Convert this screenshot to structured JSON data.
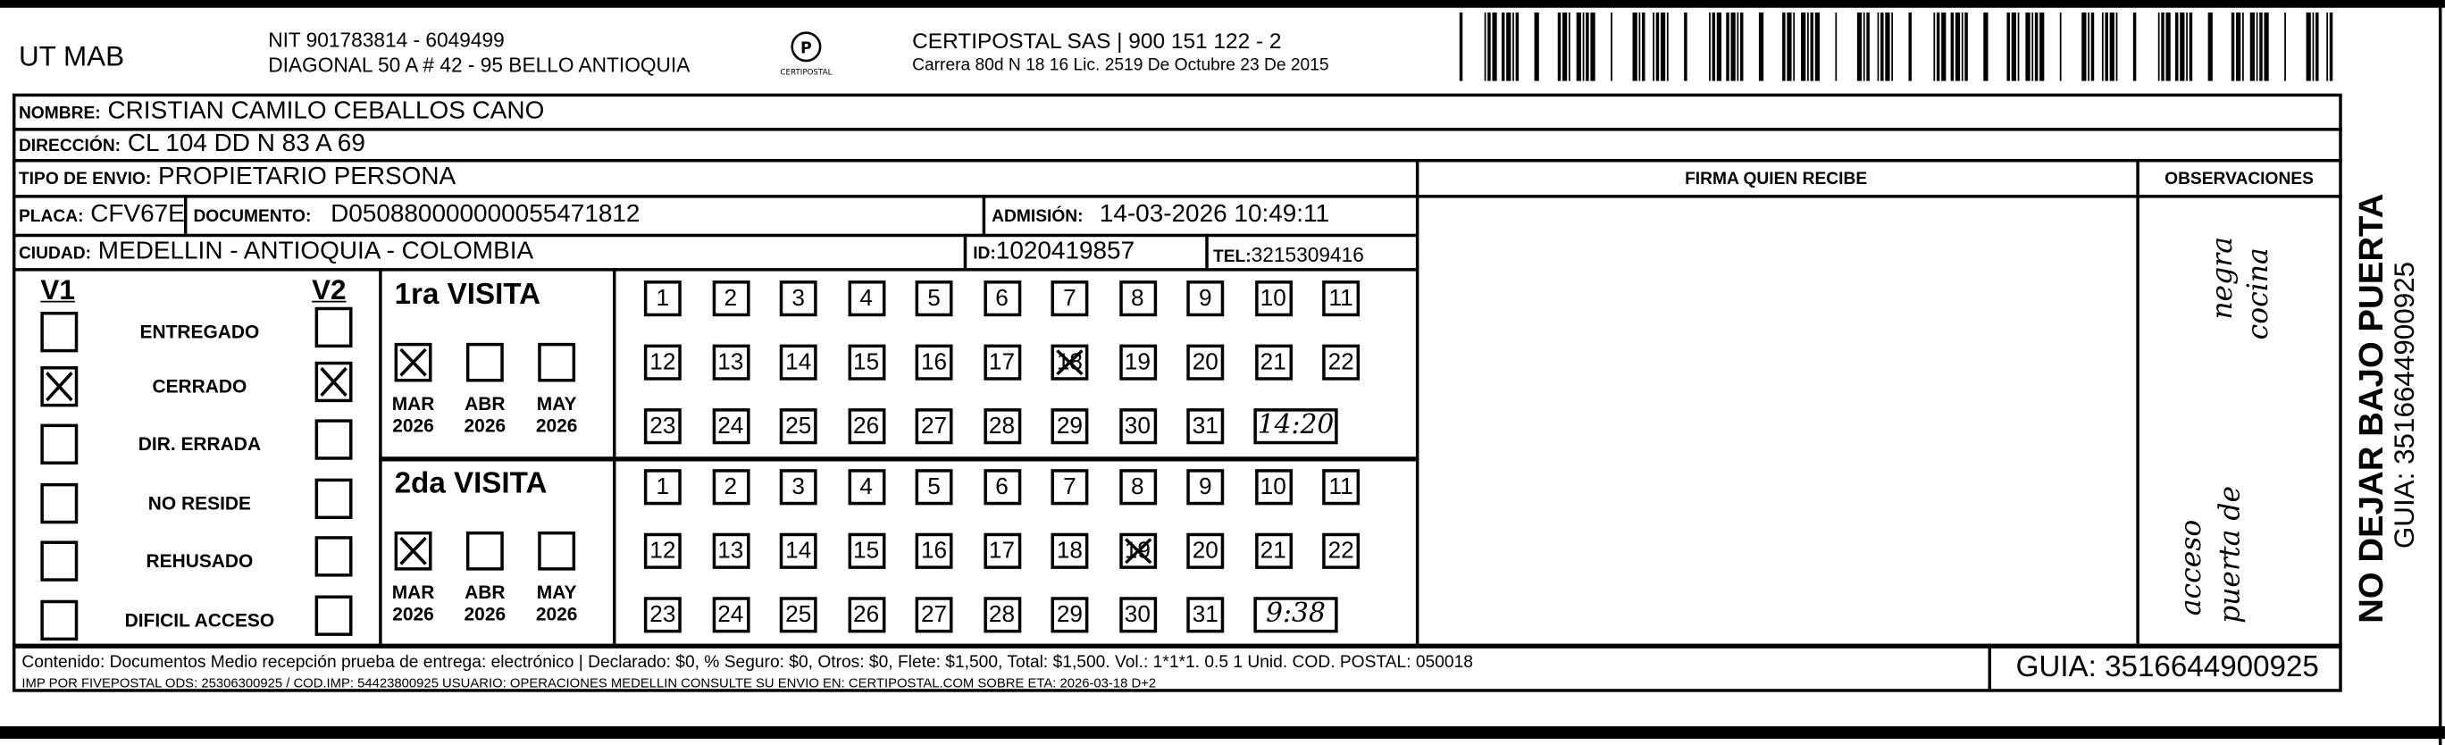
{
  "header": {
    "sender": "UT MAB",
    "nit": "NIT 901783814 - 6049499",
    "address": "DIAGONAL 50 A # 42 - 95  BELLO  ANTIOQUIA",
    "logo_text": "CERTIPOSTAL",
    "carrier": "CERTIPOSTAL SAS | 900 151 122 - 2",
    "carrier_address": "Carrera 80d N 18 16  Lic. 2519 De Octubre 23 De 2015"
  },
  "recipient": {
    "nombre_label": "NOMBRE:",
    "nombre": "CRISTIAN CAMILO CEBALLOS CANO",
    "direccion_label": "DIRECCIÓN:",
    "direccion": "CL 104 DD N 83 A 69",
    "tipo_label": "TIPO DE ENVIO:",
    "tipo": "PROPIETARIO PERSONA",
    "placa_label": "PLACA:",
    "placa": "CFV67E",
    "documento_label": "DOCUMENTO:",
    "documento": "D050880000000055471812",
    "admision_label": "ADMISIÓN:",
    "admision": "14-03-2026 10:49:11",
    "ciudad_label": "CIUDAD:",
    "ciudad": "MEDELLIN - ANTIOQUIA - COLOMBIA",
    "id_label": "ID:",
    "id": "1020419857",
    "tel_label": "TEL:",
    "tel": "3215309416"
  },
  "columns": {
    "firma": "FIRMA QUIEN RECIBE",
    "observaciones": "OBSERVACIONES"
  },
  "status": {
    "v1_label": "V1",
    "v2_label": "V2",
    "items": [
      {
        "label": "ENTREGADO",
        "v1": false,
        "v2": false
      },
      {
        "label": "CERRADO",
        "v1": true,
        "v2": true
      },
      {
        "label": "DIR. ERRADA",
        "v1": false,
        "v2": false
      },
      {
        "label": "NO RESIDE",
        "v1": false,
        "v2": false
      },
      {
        "label": "REHUSADO",
        "v1": false,
        "v2": false
      },
      {
        "label": "DIFICIL ACCESO",
        "v1": false,
        "v2": false
      }
    ]
  },
  "visits": [
    {
      "title": "1ra VISITA",
      "months": [
        {
          "m": "MAR",
          "y": "2026",
          "checked": true
        },
        {
          "m": "ABR",
          "y": "2026",
          "checked": false
        },
        {
          "m": "MAY",
          "y": "2026",
          "checked": false
        }
      ],
      "day_marked": 18,
      "time": "14:20"
    },
    {
      "title": "2da VISITA",
      "months": [
        {
          "m": "MAR",
          "y": "2026",
          "checked": true
        },
        {
          "m": "ABR",
          "y": "2026",
          "checked": false
        },
        {
          "m": "MAY",
          "y": "2026",
          "checked": false
        }
      ],
      "day_marked": 19,
      "time": "9:38"
    }
  ],
  "observations_handwritten": [
    "acceso",
    "puerta de",
    "negra",
    "cocina"
  ],
  "footer": {
    "line1": "Contenido: Documentos Medio recepción prueba de entrega: electrónico | Declarado: $0, % Seguro: $0, Otros: $0, Flete: $1,500, Total: $1,500. Vol.: 1*1*1. 0.5  1 Unid. COD. POSTAL: 050018",
    "line2": "IMP POR FIVEPOSTAL ODS: 25306300925 / COD.IMP: 54423800925 USUARIO: OPERACIONES MEDELLIN CONSULTE SU ENVIO EN: CERTIPOSTAL.COM SOBRE ETA: 2026-03-18 D+2",
    "guia": "GUIA: 3516644900925"
  },
  "side": {
    "warning": "NO DEJAR BAJO PUERTA",
    "guia": "GUIA: 3516644900925"
  },
  "barcode_icon": "barcode"
}
